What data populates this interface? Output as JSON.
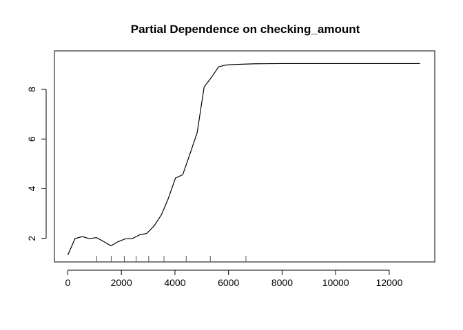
{
  "chart_data": {
    "type": "line",
    "title": "Partial Dependence on checking_amount",
    "xlabel": "",
    "ylabel": "",
    "xlim": [
      -500,
      13700
    ],
    "ylim": [
      1.05,
      9.55
    ],
    "x_ticks": [
      0,
      2000,
      4000,
      6000,
      8000,
      10000,
      12000
    ],
    "y_ticks": [
      2,
      4,
      6,
      8
    ],
    "grid": false,
    "series": [
      {
        "x": [
          0,
          270,
          540,
          800,
          1070,
          1340,
          1610,
          1880,
          2150,
          2410,
          2680,
          2950,
          3220,
          3490,
          3750,
          4020,
          4290,
          4560,
          4830,
          5090,
          5360,
          5630,
          5900,
          6170,
          6440,
          6700,
          7000,
          8000,
          9000,
          10000,
          11000,
          12000,
          13150
        ],
        "y": [
          1.33,
          1.99,
          2.07,
          1.99,
          2.03,
          1.87,
          1.7,
          1.87,
          1.98,
          1.99,
          2.14,
          2.2,
          2.5,
          2.94,
          3.6,
          4.43,
          4.56,
          5.4,
          6.26,
          8.1,
          8.48,
          8.91,
          8.98,
          9.0,
          9.01,
          9.02,
          9.03,
          9.04,
          9.04,
          9.04,
          9.04,
          9.04,
          9.04
        ]
      }
    ],
    "rug_x": [
      1080,
      1620,
      2110,
      2550,
      3020,
      3590,
      4420,
      5320,
      6650
    ]
  }
}
